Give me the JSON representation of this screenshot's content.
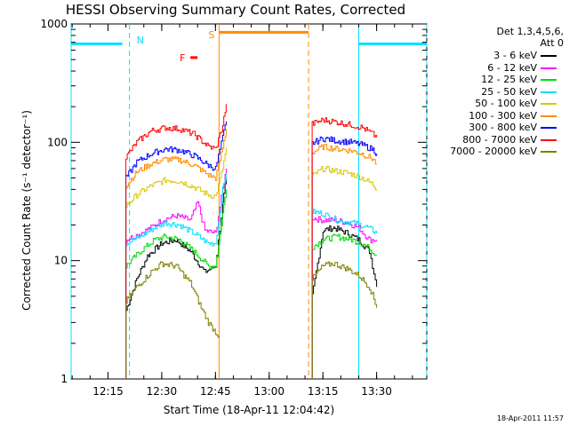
{
  "chart_data": {
    "type": "line",
    "title": "HESSI Observing Summary Count Rates, Corrected",
    "xlabel": "Start Time (18-Apr-11 12:04:42)",
    "ylabel": "Corrected Count Rate (s⁻¹ detector⁻¹)",
    "y_scale": "log",
    "ylim": [
      1,
      1000
    ],
    "xlim": [
      "12:04:42",
      "13:44:00"
    ],
    "x_ticks": [
      "12:15",
      "12:30",
      "12:45",
      "13:00",
      "13:15",
      "13:30"
    ],
    "y_ticks": [
      "1",
      "10",
      "100",
      "1000"
    ],
    "legend_header": [
      "Det 1,3,4,5,6,",
      "Att 0"
    ],
    "legend_position": "right",
    "series": [
      {
        "name": "3 - 6 keV",
        "color": "#000000",
        "segments": [
          [
            [
              "12:20",
              3.8
            ],
            [
              "12:23",
              7
            ],
            [
              "12:26",
              11
            ],
            [
              "12:30",
              14
            ],
            [
              "12:34",
              15
            ],
            [
              "12:38",
              12
            ],
            [
              "12:42",
              8
            ],
            [
              "12:45",
              9
            ],
            [
              "12:47",
              30
            ],
            [
              "12:48",
              50
            ]
          ],
          [
            [
              "13:12",
              5
            ],
            [
              "13:15",
              18
            ],
            [
              "13:18",
              19
            ],
            [
              "13:22",
              17
            ],
            [
              "13:25",
              15
            ],
            [
              "13:28",
              12
            ],
            [
              "13:30",
              6
            ]
          ]
        ]
      },
      {
        "name": "6 - 12 keV",
        "color": "#ff00ff",
        "segments": [
          [
            [
              "12:20",
              15
            ],
            [
              "12:24",
              17
            ],
            [
              "12:27",
              19
            ],
            [
              "12:30",
              22
            ],
            [
              "12:34",
              24
            ],
            [
              "12:38",
              22
            ],
            [
              "12:40",
              31
            ],
            [
              "12:42",
              18
            ],
            [
              "12:45",
              17
            ],
            [
              "12:47",
              40
            ],
            [
              "12:48",
              60
            ]
          ],
          [
            [
              "13:12",
              23
            ],
            [
              "13:15",
              22
            ],
            [
              "13:18",
              22
            ],
            [
              "13:22",
              21
            ],
            [
              "13:25",
              19
            ],
            [
              "13:28",
              15
            ],
            [
              "13:30",
              15
            ]
          ]
        ]
      },
      {
        "name": "12 - 25 keV",
        "color": "#00dd00",
        "segments": [
          [
            [
              "12:20",
              9
            ],
            [
              "12:24",
              12
            ],
            [
              "12:28",
              15
            ],
            [
              "12:31",
              16
            ],
            [
              "12:35",
              15
            ],
            [
              "12:39",
              12
            ],
            [
              "12:43",
              9
            ],
            [
              "12:45",
              9
            ],
            [
              "12:47",
              25
            ],
            [
              "12:48",
              40
            ]
          ],
          [
            [
              "13:12",
              13
            ],
            [
              "13:15",
              15
            ],
            [
              "13:19",
              16
            ],
            [
              "13:23",
              15
            ],
            [
              "13:26",
              14
            ],
            [
              "13:29",
              12
            ],
            [
              "13:30",
              11
            ]
          ]
        ]
      },
      {
        "name": "25 - 50 keV",
        "color": "#00e0ff",
        "segments": [
          [
            [
              "12:20",
              14
            ],
            [
              "12:24",
              16
            ],
            [
              "12:28",
              19
            ],
            [
              "12:31",
              21
            ],
            [
              "12:35",
              20
            ],
            [
              "12:39",
              17
            ],
            [
              "12:43",
              14
            ],
            [
              "12:45",
              14
            ],
            [
              "12:47",
              40
            ],
            [
              "12:48",
              55
            ]
          ],
          [
            [
              "13:12",
              26
            ],
            [
              "13:15",
              25
            ],
            [
              "13:19",
              22
            ],
            [
              "13:23",
              21
            ],
            [
              "13:26",
              20
            ],
            [
              "13:29",
              18
            ],
            [
              "13:30",
              17
            ]
          ]
        ]
      },
      {
        "name": "50 - 100 keV",
        "color": "#d8c800",
        "segments": [
          [
            [
              "12:20",
              29
            ],
            [
              "12:23",
              36
            ],
            [
              "12:27",
              43
            ],
            [
              "12:31",
              48
            ],
            [
              "12:35",
              47
            ],
            [
              "12:39",
              42
            ],
            [
              "12:43",
              36
            ],
            [
              "12:45",
              35
            ],
            [
              "12:47",
              60
            ],
            [
              "12:48",
              90
            ]
          ],
          [
            [
              "13:12",
              52
            ],
            [
              "13:15",
              60
            ],
            [
              "13:19",
              57
            ],
            [
              "13:23",
              54
            ],
            [
              "13:26",
              50
            ],
            [
              "13:29",
              44
            ],
            [
              "13:30",
              40
            ]
          ]
        ]
      },
      {
        "name": "100 - 300 keV",
        "color": "#ff8c00",
        "segments": [
          [
            [
              "12:20",
              43
            ],
            [
              "12:23",
              56
            ],
            [
              "12:27",
              66
            ],
            [
              "12:31",
              72
            ],
            [
              "12:35",
              71
            ],
            [
              "12:39",
              64
            ],
            [
              "12:43",
              53
            ],
            [
              "12:45",
              50
            ],
            [
              "12:47",
              90
            ],
            [
              "12:48",
              130
            ]
          ],
          [
            [
              "13:12",
              82
            ],
            [
              "13:15",
              92
            ],
            [
              "13:19",
              88
            ],
            [
              "13:23",
              85
            ],
            [
              "13:26",
              80
            ],
            [
              "13:29",
              72
            ],
            [
              "13:30",
              65
            ]
          ]
        ]
      },
      {
        "name": "300 - 800 keV",
        "color": "#0000ff",
        "segments": [
          [
            [
              "12:20",
              50
            ],
            [
              "12:23",
              68
            ],
            [
              "12:27",
              80
            ],
            [
              "12:31",
              88
            ],
            [
              "12:35",
              86
            ],
            [
              "12:39",
              77
            ],
            [
              "12:43",
              64
            ],
            [
              "12:45",
              60
            ],
            [
              "12:47",
              110
            ],
            [
              "12:48",
              150
            ]
          ],
          [
            [
              "13:12",
              98
            ],
            [
              "13:15",
              108
            ],
            [
              "13:19",
              103
            ],
            [
              "13:23",
              100
            ],
            [
              "13:26",
              95
            ],
            [
              "13:29",
              87
            ],
            [
              "13:30",
              80
            ]
          ]
        ]
      },
      {
        "name": "800 - 7000 keV",
        "color": "#ff0000",
        "segments": [
          [
            [
              "12:20",
              75
            ],
            [
              "12:23",
              100
            ],
            [
              "12:27",
              125
            ],
            [
              "12:31",
              133
            ],
            [
              "12:35",
              130
            ],
            [
              "12:39",
              117
            ],
            [
              "12:43",
              92
            ],
            [
              "12:45",
              88
            ],
            [
              "12:47",
              140
            ],
            [
              "12:48",
              210
            ]
          ],
          [
            [
              "13:12",
              143
            ],
            [
              "13:15",
              155
            ],
            [
              "13:19",
              148
            ],
            [
              "13:23",
              140
            ],
            [
              "13:26",
              133
            ],
            [
              "13:29",
              117
            ],
            [
              "13:30",
              110
            ]
          ]
        ]
      },
      {
        "name": "7000 - 20000 keV",
        "color": "#808000",
        "segments": [
          [
            [
              "12:20",
              4.5
            ],
            [
              "12:23",
              6
            ],
            [
              "12:27",
              8
            ],
            [
              "12:30",
              9.5
            ],
            [
              "12:34",
              9
            ],
            [
              "12:38",
              6.5
            ],
            [
              "12:41",
              4
            ],
            [
              "12:43",
              3
            ],
            [
              "12:45",
              2.5
            ],
            [
              "12:46",
              2.3
            ]
          ],
          [
            [
              "13:12",
              7
            ],
            [
              "13:15",
              9
            ],
            [
              "13:18",
              9.5
            ],
            [
              "13:22",
              8.5
            ],
            [
              "13:25",
              7.5
            ],
            [
              "13:28",
              6
            ],
            [
              "13:30",
              4
            ]
          ]
        ]
      }
    ],
    "annotations": [
      {
        "label": "N",
        "kind": "night",
        "color": "#00e0ff",
        "intervals": [
          [
            "12:04:42",
            "12:21"
          ],
          [
            "13:25",
            "13:44"
          ]
        ],
        "bars": [
          [
            "12:04:42",
            "12:19"
          ],
          [
            "13:25",
            "13:44"
          ]
        ],
        "bar_level": 680
      },
      {
        "label": "S",
        "kind": "saa",
        "color": "#ff8c00",
        "intervals": [
          [
            "12:46",
            "13:11"
          ]
        ],
        "bars": [
          [
            "12:46",
            "13:11"
          ]
        ],
        "bar_level": 850
      },
      {
        "label": "F",
        "kind": "flare",
        "color": "#ff0000",
        "bars": [
          [
            "12:38",
            "12:40"
          ]
        ],
        "bar_level": 520
      }
    ]
  },
  "timestamp": "18-Apr-2011 11:57"
}
